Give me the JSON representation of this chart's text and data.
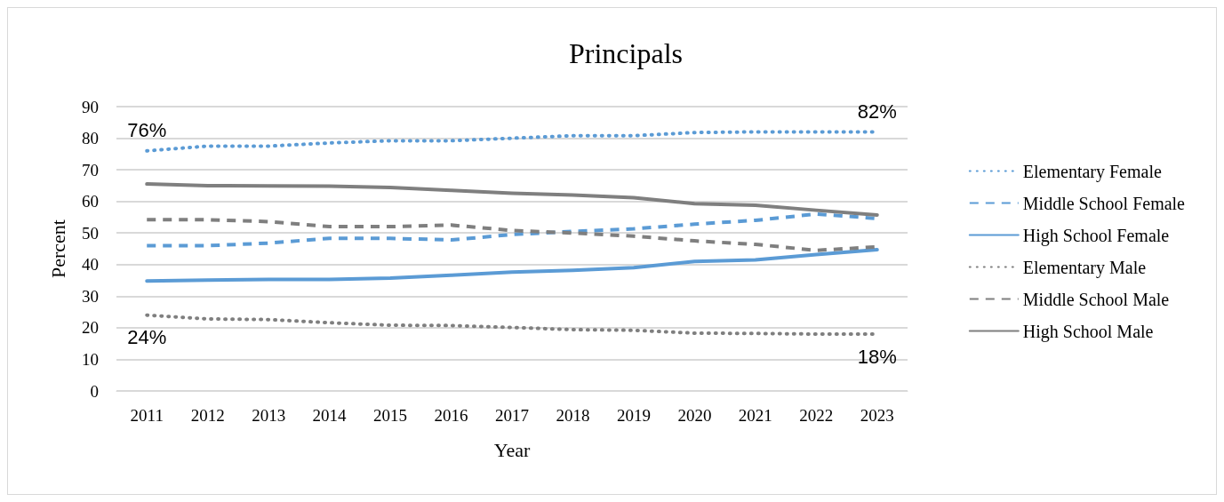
{
  "chart_data": {
    "type": "line",
    "title": "Principals",
    "xlabel": "Year",
    "ylabel": "Percent",
    "categories": [
      "2011",
      "2012",
      "2013",
      "2014",
      "2015",
      "2016",
      "2017",
      "2018",
      "2019",
      "2020",
      "2021",
      "2022",
      "2023"
    ],
    "ylim": [
      0,
      90
    ],
    "yticks": [
      0,
      10,
      20,
      30,
      40,
      50,
      60,
      70,
      80,
      90
    ],
    "grid": "y",
    "legend": "right",
    "marker": "none",
    "series": [
      {
        "name": "Elementary Female",
        "color": "#5b9bd5",
        "line_style": "dotted",
        "values": [
          76,
          77.5,
          77.5,
          78.5,
          79.2,
          79.2,
          80,
          80.8,
          80.8,
          81.8,
          82,
          82,
          82
        ]
      },
      {
        "name": "Middle School Female",
        "color": "#5b9bd5",
        "line_style": "dashed",
        "values": [
          46,
          46,
          46.8,
          48.3,
          48.3,
          47.8,
          49.5,
          50.5,
          51.3,
          52.8,
          54,
          56,
          54.6
        ]
      },
      {
        "name": "High School Female",
        "color": "#5b9bd5",
        "line_style": "solid",
        "values": [
          34.8,
          35.1,
          35.3,
          35.3,
          35.7,
          36.6,
          37.6,
          38.2,
          39,
          41,
          41.5,
          43.2,
          44.7
        ]
      },
      {
        "name": "Elementary Male",
        "color": "#7f7f7f",
        "line_style": "dotted",
        "values": [
          24,
          22.8,
          22.6,
          21.6,
          20.8,
          20.7,
          20.1,
          19.4,
          19.2,
          18.3,
          18.2,
          18,
          18
        ]
      },
      {
        "name": "Middle School Male",
        "color": "#7f7f7f",
        "line_style": "dashed",
        "values": [
          54.2,
          54.2,
          53.6,
          52,
          52,
          52.5,
          50.8,
          50,
          49,
          47.5,
          46.4,
          44.5,
          45.6
        ]
      },
      {
        "name": "High School Male",
        "color": "#7f7f7f",
        "line_style": "solid",
        "values": [
          65.5,
          65,
          64.9,
          64.8,
          64.4,
          63.5,
          62.6,
          62,
          61.2,
          59.3,
          58.8,
          57.2,
          55.7
        ]
      }
    ],
    "annotations": [
      {
        "text": "76%",
        "x": "2011",
        "y": 76
      },
      {
        "text": "24%",
        "x": "2011",
        "y": 24
      },
      {
        "text": "82%",
        "x": "2023",
        "y": 82
      },
      {
        "text": "18%",
        "x": "2023",
        "y": 18
      }
    ]
  }
}
